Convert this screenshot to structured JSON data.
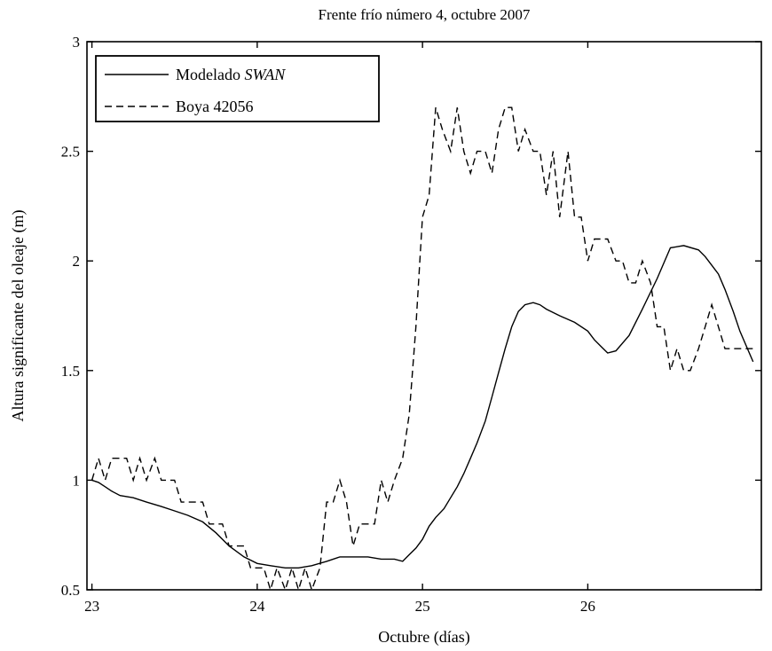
{
  "chart_data": {
    "type": "line",
    "title": "Frente frío número 4, octubre 2007",
    "xlabel": "Octubre (días)",
    "ylabel": "Altura significante del oleaje (m)",
    "xlim": [
      22.97,
      27.05
    ],
    "ylim": [
      0.5,
      3.0
    ],
    "xticks": [
      23,
      24,
      25,
      26
    ],
    "yticks": [
      0.5,
      1,
      1.5,
      2,
      2.5,
      3
    ],
    "xtick_labels": [
      "23",
      "24",
      "25",
      "26"
    ],
    "ytick_labels": [
      "0.5",
      "1",
      "1.5",
      "2",
      "2.5",
      "3"
    ],
    "grid": false,
    "legend_position": "top-left",
    "series": [
      {
        "name": "Modelado SWAN",
        "style": "solid",
        "color": "#000000",
        "x": [
          23.0,
          23.04,
          23.08,
          23.12,
          23.17,
          23.25,
          23.33,
          23.42,
          23.5,
          23.58,
          23.67,
          23.75,
          23.83,
          23.92,
          24.0,
          24.08,
          24.17,
          24.25,
          24.33,
          24.42,
          24.5,
          24.58,
          24.67,
          24.75,
          24.83,
          24.88,
          24.92,
          24.96,
          25.0,
          25.04,
          25.08,
          25.13,
          25.17,
          25.21,
          25.25,
          25.29,
          25.33,
          25.38,
          25.42,
          25.46,
          25.5,
          25.54,
          25.58,
          25.62,
          25.67,
          25.71,
          25.75,
          25.83,
          25.92,
          26.0,
          26.04,
          26.08,
          26.12,
          26.17,
          26.25,
          26.33,
          26.42,
          26.5,
          26.58,
          26.67,
          26.71,
          26.75,
          26.79,
          26.83,
          26.88,
          26.92,
          27.0
        ],
        "y": [
          1.0,
          0.99,
          0.97,
          0.95,
          0.93,
          0.92,
          0.9,
          0.88,
          0.86,
          0.84,
          0.81,
          0.76,
          0.7,
          0.65,
          0.62,
          0.61,
          0.6,
          0.6,
          0.61,
          0.63,
          0.65,
          0.65,
          0.65,
          0.64,
          0.64,
          0.63,
          0.66,
          0.69,
          0.73,
          0.79,
          0.83,
          0.87,
          0.92,
          0.97,
          1.03,
          1.1,
          1.17,
          1.27,
          1.38,
          1.49,
          1.6,
          1.7,
          1.77,
          1.8,
          1.81,
          1.8,
          1.78,
          1.75,
          1.72,
          1.68,
          1.64,
          1.61,
          1.58,
          1.59,
          1.66,
          1.78,
          1.92,
          2.06,
          2.07,
          2.05,
          2.02,
          1.98,
          1.94,
          1.87,
          1.77,
          1.68,
          1.54
        ]
      },
      {
        "name": "Boya 42056",
        "style": "dashed",
        "color": "#000000",
        "x": [
          23.0,
          23.04,
          23.08,
          23.12,
          23.17,
          23.21,
          23.25,
          23.29,
          23.33,
          23.38,
          23.42,
          23.46,
          23.5,
          23.54,
          23.58,
          23.62,
          23.67,
          23.71,
          23.75,
          23.79,
          23.83,
          23.88,
          23.92,
          23.96,
          24.0,
          24.04,
          24.08,
          24.12,
          24.17,
          24.21,
          24.25,
          24.29,
          24.33,
          24.38,
          24.42,
          24.46,
          24.5,
          24.54,
          24.58,
          24.62,
          24.67,
          24.71,
          24.75,
          24.79,
          24.83,
          24.88,
          24.92,
          24.96,
          25.0,
          25.04,
          25.08,
          25.12,
          25.17,
          25.21,
          25.25,
          25.29,
          25.33,
          25.38,
          25.42,
          25.46,
          25.5,
          25.54,
          25.58,
          25.62,
          25.67,
          25.71,
          25.75,
          25.79,
          25.83,
          25.88,
          25.92,
          25.96,
          26.0,
          26.04,
          26.08,
          26.12,
          26.17,
          26.21,
          26.25,
          26.29,
          26.33,
          26.38,
          26.42,
          26.46,
          26.5,
          26.54,
          26.58,
          26.62,
          26.67,
          26.71,
          26.75,
          26.79,
          26.83,
          26.88,
          26.92,
          26.96,
          27.0
        ],
        "y": [
          1.0,
          1.1,
          1.0,
          1.1,
          1.1,
          1.1,
          1.0,
          1.1,
          1.0,
          1.1,
          1.0,
          1.0,
          1.0,
          0.9,
          0.9,
          0.9,
          0.9,
          0.8,
          0.8,
          0.8,
          0.7,
          0.7,
          0.7,
          0.6,
          0.6,
          0.6,
          0.5,
          0.6,
          0.5,
          0.6,
          0.5,
          0.6,
          0.5,
          0.6,
          0.9,
          0.9,
          1.0,
          0.9,
          0.7,
          0.8,
          0.8,
          0.8,
          1.0,
          0.9,
          1.0,
          1.1,
          1.3,
          1.7,
          2.2,
          2.3,
          2.7,
          2.6,
          2.5,
          2.7,
          2.5,
          2.4,
          2.5,
          2.5,
          2.4,
          2.6,
          2.7,
          2.7,
          2.5,
          2.6,
          2.5,
          2.5,
          2.3,
          2.5,
          2.2,
          2.5,
          2.2,
          2.2,
          2.0,
          2.1,
          2.1,
          2.1,
          2.0,
          2.0,
          1.9,
          1.9,
          2.0,
          1.9,
          1.7,
          1.7,
          1.5,
          1.6,
          1.5,
          1.5,
          1.6,
          1.7,
          1.8,
          1.7,
          1.6,
          1.6,
          1.6,
          1.6,
          1.6
        ]
      }
    ]
  }
}
